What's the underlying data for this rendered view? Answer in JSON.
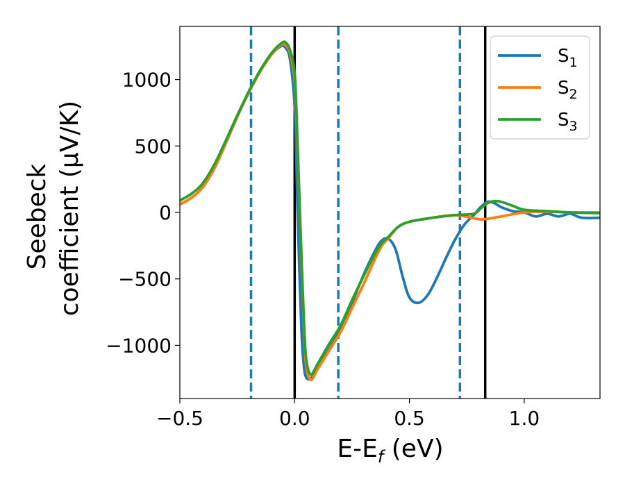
{
  "chart_data": {
    "type": "line",
    "title": "",
    "xlabel": {
      "main": "E-E",
      "sub": "f",
      "unit": " (eV)"
    },
    "ylabel": {
      "line1": "Seebeck",
      "line2": "coefficient  (μV/K)"
    },
    "xlim": [
      -0.5,
      1.33
    ],
    "ylim": [
      -1400,
      1400
    ],
    "xticks": [
      {
        "value": -0.5,
        "label": "−0.5"
      },
      {
        "value": 0.0,
        "label": "0.0"
      },
      {
        "value": 0.5,
        "label": "0.5"
      },
      {
        "value": 1.0,
        "label": "1.0"
      }
    ],
    "yticks": [
      {
        "value": -1000,
        "label": "−1000"
      },
      {
        "value": -500,
        "label": "−500"
      },
      {
        "value": 0,
        "label": "0"
      },
      {
        "value": 500,
        "label": "500"
      },
      {
        "value": 1000,
        "label": "1000"
      }
    ],
    "vlines": [
      {
        "x": -0.19,
        "style": "dashed",
        "color": "#1f77b4"
      },
      {
        "x": 0.19,
        "style": "dashed",
        "color": "#1f77b4"
      },
      {
        "x": 0.72,
        "style": "dashed",
        "color": "#1f77b4"
      },
      {
        "x": 0.0,
        "style": "solid",
        "color": "#000000"
      },
      {
        "x": 0.83,
        "style": "solid",
        "color": "#000000"
      }
    ],
    "legend": {
      "position": "top-right"
    },
    "series": [
      {
        "name": "S",
        "sub": "1",
        "color": "#1f77b4",
        "x": [
          -0.5,
          -0.45,
          -0.4,
          -0.35,
          -0.3,
          -0.25,
          -0.2,
          -0.15,
          -0.1,
          -0.06,
          -0.04,
          -0.02,
          0.0,
          0.01,
          0.02,
          0.03,
          0.04,
          0.05,
          0.07,
          0.1,
          0.15,
          0.2,
          0.25,
          0.3,
          0.35,
          0.38,
          0.41,
          0.44,
          0.47,
          0.5,
          0.54,
          0.58,
          0.62,
          0.66,
          0.7,
          0.74,
          0.78,
          0.81,
          0.84,
          0.87,
          0.9,
          0.95,
          1.0,
          1.05,
          1.1,
          1.15,
          1.2,
          1.25,
          1.33
        ],
        "y": [
          60,
          110,
          190,
          330,
          520,
          720,
          900,
          1060,
          1190,
          1250,
          1240,
          1150,
          800,
          200,
          -400,
          -900,
          -1150,
          -1240,
          -1250,
          -1170,
          -1030,
          -880,
          -680,
          -470,
          -290,
          -210,
          -200,
          -280,
          -480,
          -640,
          -680,
          -620,
          -490,
          -340,
          -200,
          -90,
          -20,
          40,
          80,
          70,
          40,
          10,
          0,
          -30,
          -10,
          -30,
          -10,
          -40,
          -40
        ]
      },
      {
        "name": "S",
        "sub": "2",
        "color": "#ff7f0e",
        "x": [
          -0.5,
          -0.45,
          -0.4,
          -0.35,
          -0.3,
          -0.25,
          -0.2,
          -0.15,
          -0.1,
          -0.06,
          -0.04,
          -0.02,
          0.0,
          0.01,
          0.02,
          0.03,
          0.04,
          0.05,
          0.07,
          0.1,
          0.15,
          0.2,
          0.25,
          0.3,
          0.35,
          0.38,
          0.41,
          0.45,
          0.5,
          0.6,
          0.7,
          0.8,
          0.83,
          0.9,
          1.0,
          1.1,
          1.2,
          1.33
        ],
        "y": [
          60,
          110,
          190,
          330,
          520,
          720,
          900,
          1060,
          1190,
          1260,
          1260,
          1200,
          1000,
          600,
          100,
          -400,
          -850,
          -1150,
          -1260,
          -1180,
          -1040,
          -900,
          -720,
          -540,
          -350,
          -250,
          -190,
          -110,
          -70,
          -40,
          -20,
          -50,
          -50,
          -30,
          0,
          5,
          0,
          0
        ]
      },
      {
        "name": "S",
        "sub": "3",
        "color": "#2ca02c",
        "x": [
          -0.5,
          -0.45,
          -0.4,
          -0.35,
          -0.3,
          -0.25,
          -0.2,
          -0.15,
          -0.1,
          -0.06,
          -0.04,
          -0.02,
          0.0,
          0.01,
          0.02,
          0.03,
          0.04,
          0.05,
          0.07,
          0.1,
          0.15,
          0.2,
          0.25,
          0.3,
          0.35,
          0.38,
          0.41,
          0.45,
          0.5,
          0.6,
          0.7,
          0.78,
          0.81,
          0.84,
          0.87,
          0.9,
          0.95,
          1.0,
          1.1,
          1.2,
          1.33
        ],
        "y": [
          90,
          140,
          220,
          360,
          540,
          730,
          910,
          1070,
          1200,
          1270,
          1280,
          1220,
          1050,
          650,
          150,
          -350,
          -800,
          -1100,
          -1220,
          -1140,
          -990,
          -850,
          -660,
          -480,
          -310,
          -230,
          -180,
          -110,
          -70,
          -40,
          -20,
          -10,
          30,
          70,
          85,
          80,
          50,
          20,
          10,
          0,
          -5
        ]
      }
    ]
  }
}
